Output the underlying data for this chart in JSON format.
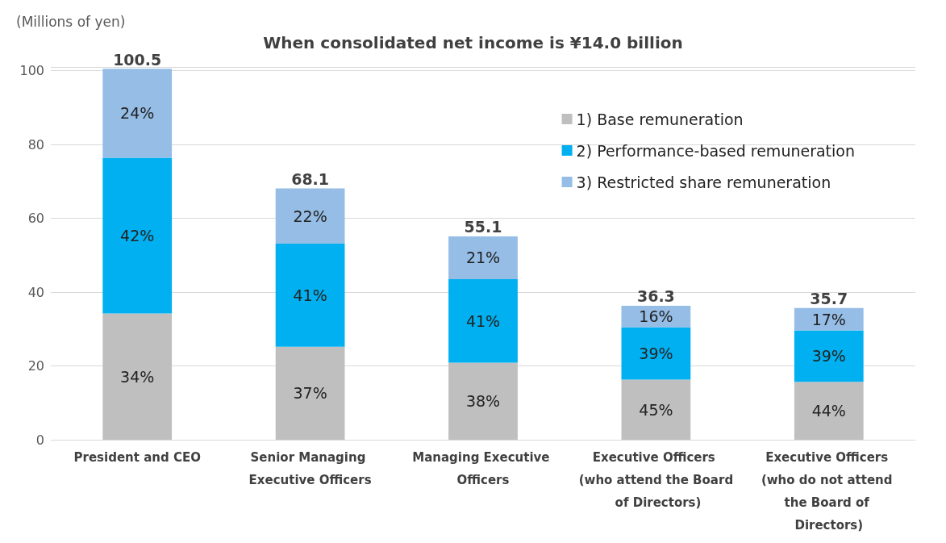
{
  "chart_data": {
    "type": "bar",
    "stacked": true,
    "title": "When consolidated net income is ¥14.0 billion",
    "ylabel": "(Millions of yen)",
    "categories": [
      "President and CEO",
      "Senior Managing Executive Officers",
      "Managing Executive Officers",
      "Executive Officers (who attend the Board of Directors)",
      "Executive Officers (who do not attend the Board of Directors)"
    ],
    "series": [
      {
        "name": "1) Base remuneration",
        "color": "#bfbfbf",
        "values": [
          34.2,
          25.2,
          20.9,
          16.3,
          15.7
        ]
      },
      {
        "name": "2) Performance-based remuneration",
        "color": "#00b0f0",
        "values": [
          42.2,
          27.9,
          22.6,
          14.2,
          13.9
        ]
      },
      {
        "name": "3) Restricted share remuneration",
        "color": "#95bde6",
        "values": [
          24.1,
          15.0,
          11.6,
          5.8,
          6.1
        ]
      }
    ],
    "annotations": [
      "34%",
      "42%",
      "24%",
      "37%",
      "41%",
      "22%",
      "38%",
      "41%",
      "21%",
      "45%",
      "39%",
      "16%",
      "44%",
      "39%",
      "17%"
    ],
    "totals": [
      "100.5",
      "68.1",
      "55.1",
      "36.3",
      "35.7"
    ],
    "ylim": [
      0,
      101
    ],
    "yticks": [
      0,
      20,
      40,
      60,
      80,
      100
    ],
    "grid": "y",
    "legend": "top right"
  }
}
